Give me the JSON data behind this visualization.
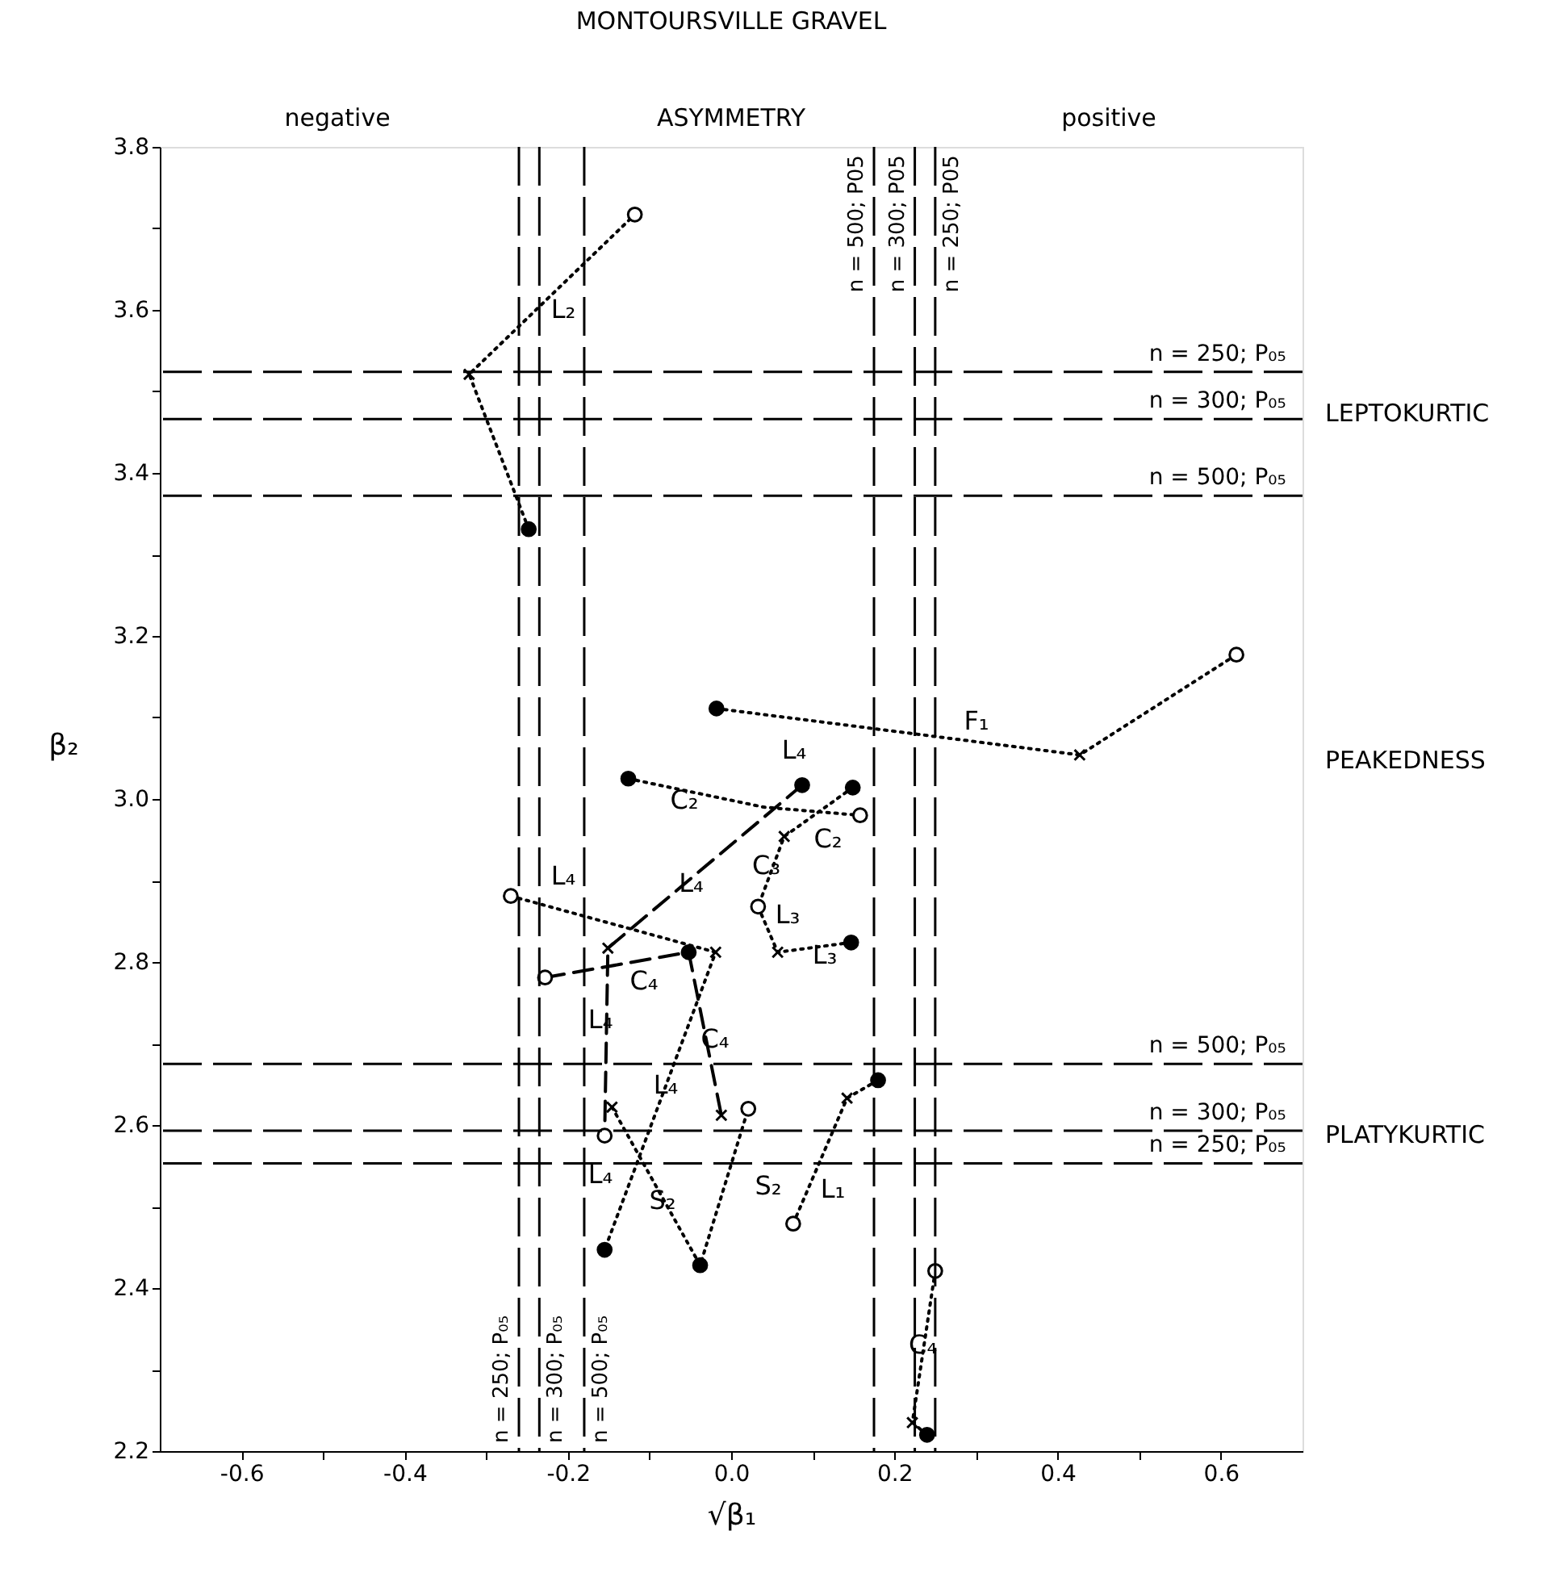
{
  "chart_data": {
    "type": "line",
    "title": "MONTOURSVILLE GRAVEL",
    "xlabel": "√β₁",
    "ylabel": "β₂",
    "xlim": [
      -0.7,
      0.7
    ],
    "ylim": [
      2.2,
      3.8
    ],
    "xticks": [
      -0.6,
      {
        "value": -0.5,
        "label": null
      },
      -0.4,
      {
        "value": -0.3,
        "label": null
      },
      -0.2,
      {
        "value": -0.1,
        "label": null
      },
      {
        "value": 0,
        "label": "0.0"
      },
      {
        "value": 0.1,
        "label": null
      },
      0.2,
      {
        "value": 0.3,
        "label": null
      },
      0.4,
      {
        "value": 0.5,
        "label": null
      },
      0.6
    ],
    "yticks": [
      2.2,
      {
        "value": 2.3,
        "label": null
      },
      2.4,
      {
        "value": 2.5,
        "label": null
      },
      2.6,
      {
        "value": 2.7,
        "label": null
      },
      2.8,
      {
        "value": 2.9,
        "label": null
      },
      {
        "value": 3,
        "label": "3.0"
      },
      {
        "value": 3.1,
        "label": null
      },
      3.2,
      {
        "value": 3.3,
        "label": null
      },
      3.4,
      {
        "value": 3.5,
        "label": null
      },
      3.6,
      {
        "value": 3.7,
        "label": null
      },
      3.8
    ],
    "grid": false,
    "series": [
      {
        "color": "#000000",
        "line_style": "dotted",
        "x": [
          -0.248,
          -0.321,
          -0.118
        ],
        "values": [
          3.331,
          3.521,
          3.717
        ]
      },
      {
        "color": "#000000",
        "line_style": "dotted",
        "x": [
          -0.018,
          0.427,
          0.619
        ],
        "values": [
          3.111,
          3.054,
          3.177
        ]
      },
      {
        "color": "#000000",
        "line_style": "dashed",
        "x": [
          0.087,
          -0.151,
          -0.155
        ],
        "values": [
          3.017,
          2.817,
          2.587
        ]
      },
      {
        "color": "#000000",
        "line_style": "dotted",
        "x": [
          -0.126,
          0.04,
          0.158
        ],
        "values": [
          3.025,
          2.99,
          2.98
        ]
      },
      {
        "color": "#000000",
        "line_style": "dotted",
        "x": [
          0.149,
          0.065,
          0.033
        ],
        "values": [
          3.014,
          2.954,
          2.868
        ]
      },
      {
        "color": "#000000",
        "line_style": "dotted",
        "x": [
          0.147,
          0.057,
          0.033
        ],
        "values": [
          2.824,
          2.812,
          2.868
        ]
      },
      {
        "color": "#000000",
        "line_style": "dotted",
        "x": [
          -0.27,
          -0.019,
          -0.155
        ],
        "values": [
          2.881,
          2.812,
          2.447
        ]
      },
      {
        "color": "#000000",
        "line_style": "dashed",
        "x": [
          -0.228,
          -0.052,
          -0.012
        ],
        "values": [
          2.781,
          2.812,
          2.612
        ]
      },
      {
        "color": "#000000",
        "line_style": "dotted",
        "x": [
          -0.146,
          -0.038,
          0.021
        ],
        "values": [
          2.622,
          2.428,
          2.62
        ]
      },
      {
        "color": "#000000",
        "line_style": "dotted",
        "x": [
          0.076,
          0.142,
          0.18
        ],
        "values": [
          2.479,
          2.633,
          2.655
        ]
      },
      {
        "color": "#000000",
        "line_style": "dotted",
        "x": [
          0.25,
          0.222,
          0.24
        ],
        "values": [
          2.421,
          2.235,
          2.22
        ]
      },
      {
        "type": "scatter",
        "marker": "circle",
        "color": "#000000",
        "x": [
          -0.248,
          -0.018,
          0.087,
          -0.126,
          0.149,
          0.147,
          -0.052,
          -0.155,
          -0.038,
          0.18,
          0.24
        ],
        "values": [
          3.331,
          3.111,
          3.017,
          3.025,
          3.014,
          2.824,
          2.812,
          2.447,
          2.428,
          2.655,
          2.22
        ]
      },
      {
        "type": "scatter",
        "marker": "cross",
        "color": "#000000",
        "x": [
          -0.321,
          0.427,
          -0.151,
          0.065,
          0.057,
          -0.019,
          -0.012,
          -0.146,
          0.142,
          0.222
        ],
        "values": [
          3.521,
          3.054,
          2.817,
          2.954,
          2.812,
          2.812,
          2.612,
          2.622,
          2.633,
          2.235
        ]
      },
      {
        "type": "scatter",
        "marker": "circle",
        "color": "#ffffff",
        "x": [
          -0.118,
          0.619,
          0.158,
          0.033,
          -0.27,
          -0.228,
          -0.155,
          0.021,
          0.076,
          0.25
        ],
        "values": [
          3.717,
          3.177,
          2.98,
          2.868,
          2.881,
          2.781,
          2.587,
          2.62,
          2.479,
          2.421
        ]
      }
    ],
    "ref_lines": [
      {
        "axis": "y",
        "value": 3.524,
        "line_style": "dashed"
      },
      {
        "axis": "y",
        "value": 3.466,
        "line_style": "dashed"
      },
      {
        "axis": "y",
        "value": 3.372,
        "line_style": "dashed"
      },
      {
        "axis": "y",
        "value": 2.675,
        "line_style": "dashed"
      },
      {
        "axis": "y",
        "value": 2.593,
        "line_style": "dashed"
      },
      {
        "axis": "y",
        "value": 2.553,
        "line_style": "dashed"
      },
      {
        "axis": "x",
        "value": -0.26,
        "line_style": "dashed"
      },
      {
        "axis": "x",
        "value": -0.235,
        "line_style": "dashed"
      },
      {
        "axis": "x",
        "value": -0.18,
        "line_style": "dashed"
      },
      {
        "axis": "x",
        "value": 0.175,
        "line_style": "dashed"
      },
      {
        "axis": "x",
        "value": 0.225,
        "line_style": "dashed"
      },
      {
        "axis": "x",
        "value": 0.25,
        "line_style": "dashed"
      }
    ],
    "annotations": [
      "negative",
      "ASYMMETRY",
      "positive",
      "LEPTOKURTIC",
      "PEAKEDNESS",
      "PLATYKURTIC",
      "L₄",
      "C₂",
      "C₂",
      "L₃",
      "L₃",
      "C₄",
      "C₄",
      "L₄",
      "L₂",
      "F₁",
      "L₄",
      "S₂",
      "L₁",
      {
        "text": "n = 250; P₀₅",
        "x": 0.68,
        "y": 3.524
      },
      {
        "text": "n = 300; P₀₅",
        "x": 0.68,
        "y": 3.466
      },
      {
        "text": "n = 500; P₀₅",
        "x": 0.68,
        "y": 3.372
      },
      {
        "text": "n = 500; P₀₅",
        "x": 0.68,
        "y": 2.675
      },
      {
        "text": "n = 300; P₀₅",
        "x": 0.68,
        "y": 2.593
      },
      {
        "text": "n = 250; P₀₅",
        "x": 0.68,
        "y": 2.553
      },
      {
        "text": "n = 250; P₀₅",
        "x": -0.26,
        "y": 2.21
      },
      {
        "text": "n = 300; P₀₅",
        "x": -0.235,
        "y": 2.21
      },
      {
        "text": "n = 500; P₀₅",
        "x": -0.18,
        "y": 2.21
      },
      {
        "text": "n = 500; P05",
        "x": 0.175,
        "y": 3.79
      },
      {
        "text": "n = 300; P05",
        "x": 0.225,
        "y": 3.79
      },
      {
        "text": "n = 250; P05",
        "x": 0.25,
        "y": 3.79
      },
      {
        "text": "L₄",
        "x": -0.049,
        "y": 2.896
      },
      {
        "text": "C₃",
        "x": 0.043,
        "y": 2.918
      },
      {
        "text": "L₄",
        "x": -0.16,
        "y": 2.729
      },
      {
        "text": "L₄",
        "x": -0.08,
        "y": 2.649
      },
      {
        "text": "S₂",
        "x": -0.084,
        "y": 2.507
      },
      {
        "text": "C₄",
        "x": 0.235,
        "y": 2.33
      }
    ]
  }
}
